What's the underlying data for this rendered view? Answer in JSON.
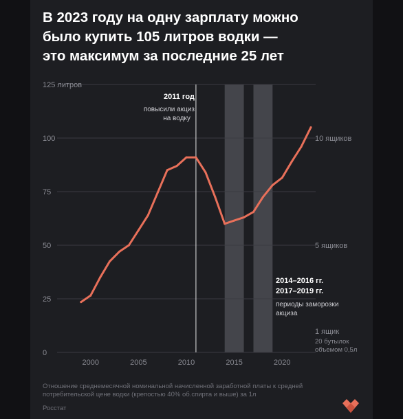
{
  "headline": {
    "line1": "В 2023 году на одну зарплату можно",
    "line2": "было купить 105 литров водки —",
    "line3": "это максимум за последние 25 лет"
  },
  "footnote": {
    "line1": "Отношение среднемесячной номинальной начисленной заработной платы к средней",
    "line2": "потребительской цене водки (крепостью 40% об.спирта и выше) за 1л"
  },
  "source": "Росстат",
  "colors": {
    "line": "#e8705a",
    "background": "#1d1e22",
    "band": "#44454b",
    "axis_text": "#8a8b93",
    "grid": "#3a3b41"
  },
  "chart_data": {
    "type": "line",
    "x": [
      1999,
      2000,
      2001,
      2002,
      2003,
      2004,
      2005,
      2006,
      2007,
      2008,
      2009,
      2010,
      2011,
      2012,
      2013,
      2014,
      2015,
      2016,
      2017,
      2018,
      2019,
      2020,
      2021,
      2022,
      2023
    ],
    "series": [
      {
        "values": [
          23.5,
          26.5,
          35,
          42.5,
          47,
          50,
          57,
          64,
          74.5,
          85,
          87,
          91,
          91,
          84,
          72.5,
          60,
          61.5,
          63,
          65.5,
          72.5,
          78,
          81.5,
          89,
          96,
          105
        ]
      }
    ],
    "xlim": [
      1996.5,
      2023.5
    ],
    "ylim": [
      0,
      125
    ],
    "yticks": [
      {
        "value": 0,
        "label": "0"
      },
      {
        "value": 25,
        "label": "25"
      },
      {
        "value": 50,
        "label": "50"
      },
      {
        "value": 75,
        "label": "75"
      },
      {
        "value": 100,
        "label": "100"
      },
      {
        "value": 125,
        "label": "125 литров"
      }
    ],
    "xticks": [
      {
        "value": 2000,
        "label": "2000"
      },
      {
        "value": 2005,
        "label": "2005"
      },
      {
        "value": 2010,
        "label": "2010"
      },
      {
        "value": 2015,
        "label": "2015"
      },
      {
        "value": 2020,
        "label": "2020"
      }
    ],
    "right_labels": [
      {
        "value": 100,
        "label": "10 ящиков"
      },
      {
        "value": 50,
        "label": "5 ящиков"
      },
      {
        "value": 10,
        "label": "1 ящик",
        "sub1": "20 бутылок",
        "sub2": "объемом 0,5л"
      }
    ],
    "bands": [
      {
        "from": 2014,
        "to": 2016
      },
      {
        "from": 2017,
        "to": 2019
      }
    ],
    "bands_annotation": {
      "line1": "2014–2016 гг.",
      "line2": "2017–2019 гг.",
      "line3": "периоды заморозки",
      "line4": "акциза"
    },
    "event": {
      "x": 2011,
      "title": "2011 год",
      "text1": "повысили акциз",
      "text2": "на водку"
    }
  }
}
